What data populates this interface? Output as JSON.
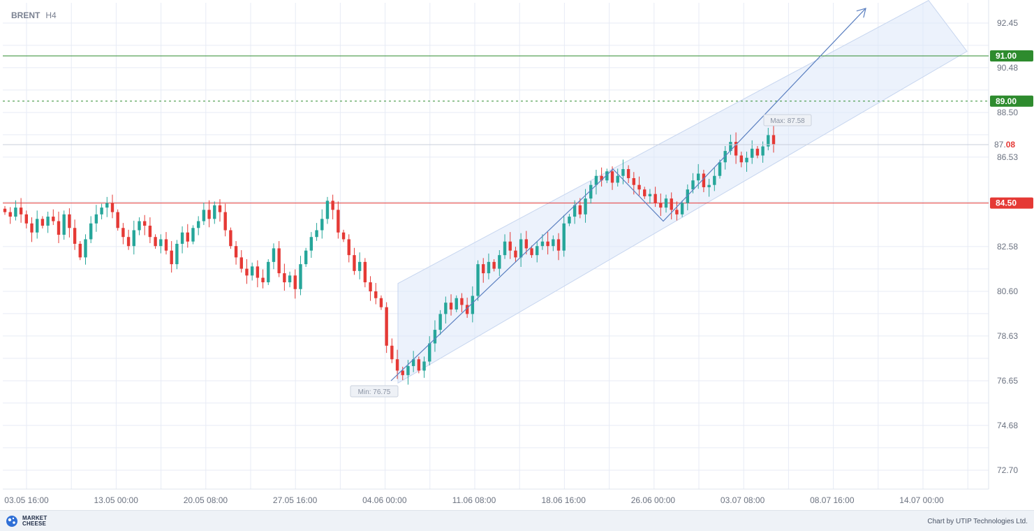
{
  "symbol": "BRENT",
  "timeframe": "H4",
  "footer": {
    "logo_line1": "MARKET",
    "logo_line2": "CHEESE",
    "credit": "Chart by UTIP Technologies Ltd."
  },
  "colors": {
    "up": "#26a69a",
    "down": "#e53935",
    "grid": "#e7ebf5",
    "channel_fill": "#dde8fa",
    "channel_line": "#5a7fc0",
    "resistance": "#2e8b2e",
    "support": "#e53935"
  },
  "chart_data": {
    "type": "candlestick",
    "y_ticks": [
      "92.45",
      "90.48",
      "88.50",
      "86.53",
      "82.58",
      "80.60",
      "78.63",
      "76.65",
      "74.68",
      "72.70"
    ],
    "x_ticks": [
      "03.05 16:00",
      "13.05 00:00",
      "20.05 08:00",
      "27.05 16:00",
      "04.06 00:00",
      "11.06 08:00",
      "18.06 16:00",
      "26.06 00:00",
      "03.07 08:00",
      "08.07 16:00",
      "14.07 00:00"
    ],
    "ylim": [
      71.85,
      93.4
    ],
    "levels": [
      {
        "value": 91.0,
        "label": "91.00",
        "style": "solid",
        "color": "#2e8b2e"
      },
      {
        "value": 89.0,
        "label": "89.00",
        "style": "dashed",
        "color": "#2e8b2e"
      },
      {
        "value": 84.5,
        "label": "84.50",
        "style": "solid",
        "color": "#e53935"
      }
    ],
    "current_price": {
      "value": 87.08,
      "label_main": "87.",
      "label_tail": "08"
    },
    "annotations": {
      "max_label": "Max: 87.58",
      "min_label": "Min: 76.75",
      "max": 87.58,
      "min": 76.75
    },
    "channel": {
      "lower_start": [
        548,
        76.65
      ],
      "lower_end": [
        1383,
        90.9
      ],
      "upper_start": [
        548,
        80.95
      ],
      "upper_end": [
        1383,
        93.4
      ]
    },
    "zigzag": [
      [
        560,
        76.65
      ],
      [
        878,
        86.0
      ],
      [
        950,
        83.7
      ],
      [
        1240,
        93.1
      ]
    ],
    "closes": [
      84.1,
      83.9,
      84.3,
      84.0,
      83.6,
      83.2,
      83.8,
      83.5,
      83.9,
      83.7,
      83.1,
      84.0,
      83.4,
      82.7,
      82.1,
      82.9,
      83.6,
      84.0,
      84.3,
      84.5,
      84.1,
      83.4,
      83.0,
      82.6,
      83.3,
      83.7,
      83.5,
      83.0,
      82.6,
      82.9,
      82.4,
      81.8,
      82.7,
      83.2,
      82.8,
      83.4,
      83.7,
      84.2,
      83.8,
      84.4,
      84.1,
      83.3,
      82.6,
      82.1,
      81.6,
      81.3,
      81.7,
      81.2,
      81.0,
      81.9,
      82.5,
      81.4,
      81.0,
      81.3,
      80.7,
      81.8,
      82.4,
      83.0,
      83.3,
      83.8,
      84.6,
      84.2,
      83.2,
      82.9,
      82.2,
      81.5,
      81.9,
      81.0,
      80.6,
      80.3,
      79.9,
      78.2,
      77.6,
      77.1,
      76.9,
      77.3,
      77.6,
      77.1,
      77.5,
      78.3,
      78.9,
      79.6,
      80.1,
      79.8,
      80.3,
      80.0,
      79.6,
      80.4,
      81.8,
      81.4,
      81.9,
      81.6,
      82.2,
      82.8,
      82.4,
      82.1,
      82.9,
      82.5,
      82.2,
      82.6,
      82.8,
      82.6,
      82.9,
      82.4,
      83.6,
      83.9,
      84.4,
      84.0,
      84.7,
      85.3,
      85.7,
      85.5,
      85.9,
      85.4,
      85.7,
      86.0,
      85.6,
      85.3,
      85.1,
      84.8,
      84.9,
      84.5,
      84.3,
      84.7,
      84.2,
      84.0,
      84.5,
      85.1,
      85.5,
      85.8,
      85.2,
      85.3,
      85.7,
      86.3,
      86.8,
      87.2,
      86.6,
      86.3,
      86.5,
      86.9,
      86.6,
      87.0,
      87.5,
      87.1
    ],
    "watermark_note": ""
  }
}
